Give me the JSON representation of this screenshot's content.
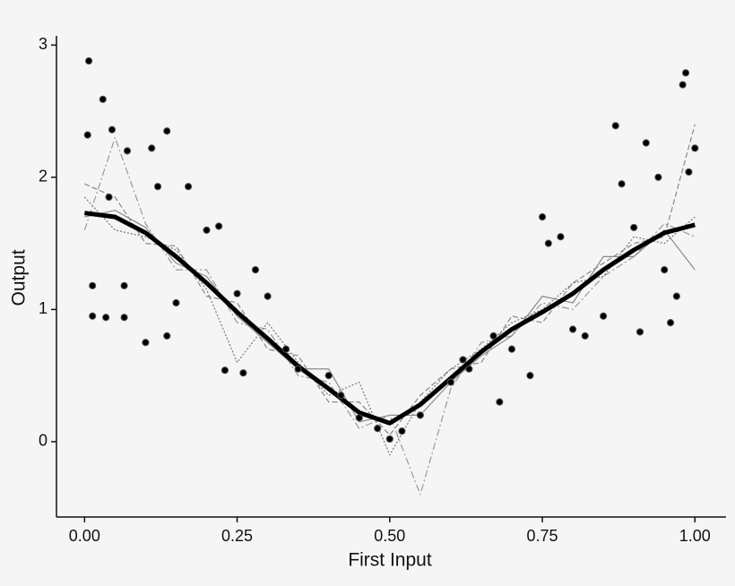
{
  "chart_data": {
    "type": "line",
    "xlabel": "First Input",
    "ylabel": "Output",
    "xlim": [
      -0.046,
      1.051
    ],
    "ylim": [
      -0.57,
      3.07
    ],
    "xticks": [
      {
        "value": 0,
        "label": "0.00"
      },
      0.25,
      {
        "value": 0.5,
        "label": "0.50"
      },
      0.75,
      {
        "value": 1,
        "label": "1.00"
      }
    ],
    "yticks": [
      0,
      1,
      2,
      3
    ],
    "x": [
      0,
      0.05,
      0.1,
      0.15,
      0.2,
      0.25,
      0.3,
      0.35,
      0.4,
      0.45,
      0.5,
      0.55,
      0.6,
      0.65,
      0.7,
      0.75,
      0.8,
      0.85,
      0.9,
      0.95,
      1
    ],
    "series": [
      {
        "color": "#888888",
        "dash": "6,3",
        "width": 1.2,
        "values": [
          1.95,
          1.85,
          1.5,
          1.48,
          1.1,
          1.05,
          0.7,
          0.65,
          0.3,
          0.3,
          0.05,
          0.35,
          0.55,
          0.6,
          0.95,
          0.9,
          1.2,
          1.35,
          1.5,
          1.55,
          2.4
        ]
      },
      {
        "color": "#999999",
        "dash": "8,3,2,3",
        "width": 1.2,
        "values": [
          1.6,
          2.3,
          1.65,
          1.3,
          1.3,
          0.9,
          0.85,
          0.5,
          0.45,
          0.1,
          0.2,
          -0.4,
          0.4,
          0.75,
          0.8,
          1.05,
          1.0,
          1.25,
          1.4,
          1.65,
          1.55
        ]
      },
      {
        "color": "#777777",
        "dash": "2,2",
        "width": 1.2,
        "values": [
          1.85,
          1.6,
          1.55,
          1.45,
          1.15,
          0.6,
          0.9,
          0.6,
          0.35,
          0.45,
          -0.1,
          0.3,
          0.55,
          0.7,
          0.9,
          1.0,
          1.2,
          1.25,
          1.55,
          1.5,
          1.7
        ]
      },
      {
        "color": "#8a8a8a",
        "dash": "",
        "width": 1.2,
        "values": [
          1.7,
          1.75,
          1.62,
          1.35,
          1.25,
          0.95,
          0.75,
          0.55,
          0.55,
          0.15,
          0.2,
          0.2,
          0.45,
          0.65,
          0.8,
          1.1,
          1.05,
          1.4,
          1.4,
          1.6,
          1.3
        ]
      },
      {
        "color": "#000000",
        "dash": "",
        "width": 5,
        "values": [
          1.73,
          1.7,
          1.58,
          1.4,
          1.2,
          0.98,
          0.78,
          0.57,
          0.4,
          0.22,
          0.14,
          0.28,
          0.48,
          0.68,
          0.85,
          0.98,
          1.12,
          1.3,
          1.45,
          1.58,
          1.64
        ]
      }
    ],
    "points": {
      "type": "scatter",
      "color": "#000000",
      "x": [
        0.005,
        0.007,
        0.013,
        0.013,
        0.03,
        0.035,
        0.045,
        0.065,
        0.065,
        0.07,
        0.1,
        0.11,
        0.12,
        0.135,
        0.135,
        0.17,
        0.2,
        0.22,
        0.23,
        0.26,
        0.28,
        0.3,
        0.33,
        0.35,
        0.4,
        0.42,
        0.45,
        0.48,
        0.5,
        0.52,
        0.55,
        0.6,
        0.63,
        0.67,
        0.7,
        0.73,
        0.75,
        0.76,
        0.78,
        0.8,
        0.82,
        0.85,
        0.87,
        0.88,
        0.9,
        0.91,
        0.92,
        0.94,
        0.95,
        0.96,
        0.97,
        0.98,
        0.985,
        0.99,
        1.0,
        0.04,
        0.15,
        0.25,
        0.62,
        0.68
      ],
      "y": [
        2.32,
        2.88,
        1.18,
        0.95,
        2.59,
        0.94,
        2.36,
        1.18,
        0.94,
        2.2,
        0.75,
        2.22,
        1.93,
        2.35,
        0.8,
        1.93,
        1.6,
        1.63,
        0.54,
        0.52,
        1.3,
        1.1,
        0.7,
        0.55,
        0.5,
        0.35,
        0.18,
        0.1,
        0.02,
        0.08,
        0.2,
        0.45,
        0.55,
        0.8,
        0.7,
        0.5,
        1.7,
        1.5,
        1.55,
        0.85,
        0.8,
        0.95,
        2.39,
        1.95,
        1.62,
        0.83,
        2.26,
        2.0,
        1.3,
        0.9,
        1.1,
        2.7,
        2.79,
        2.04,
        2.22,
        1.85,
        1.05,
        1.12,
        0.62,
        0.3
      ]
    }
  }
}
